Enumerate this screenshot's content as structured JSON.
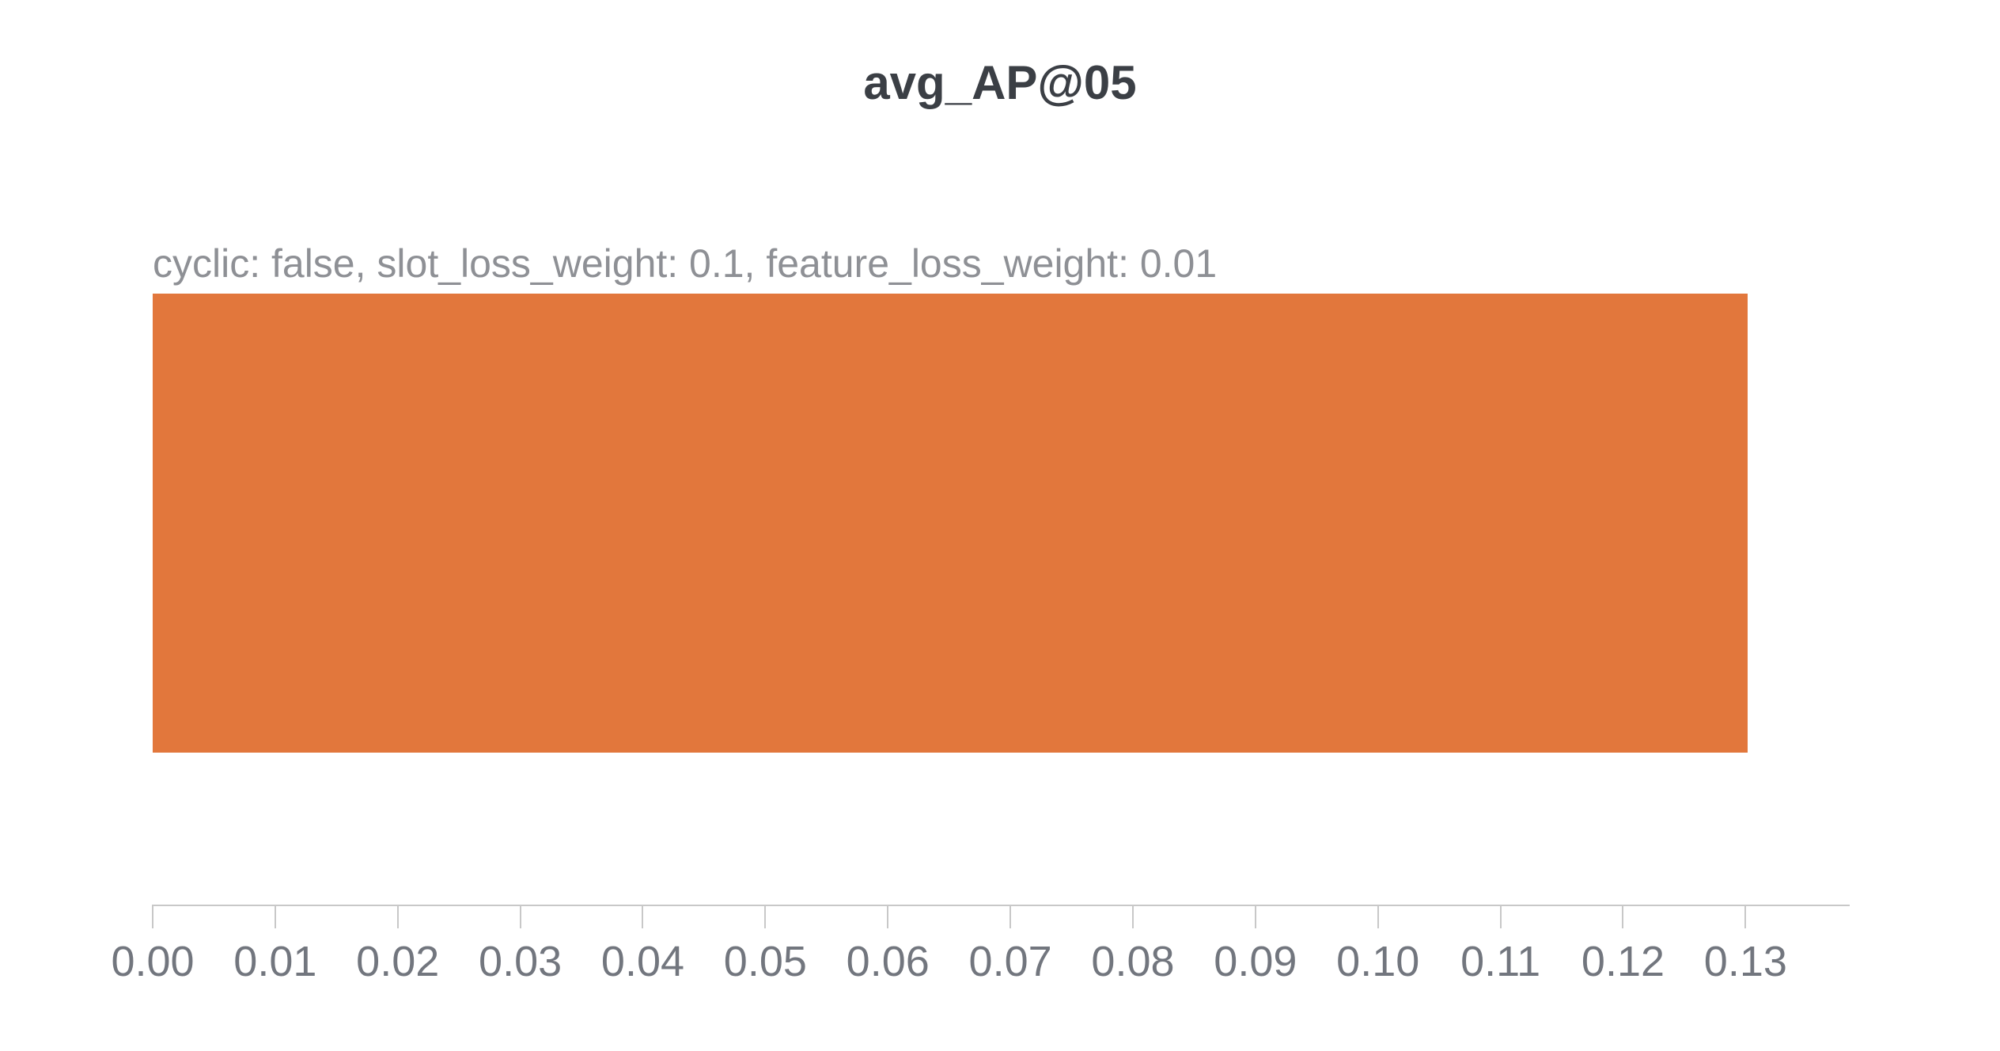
{
  "chart_data": {
    "type": "bar",
    "orientation": "horizontal",
    "title": "avg_AP@05",
    "categories": [
      "cyclic: false, slot_loss_weight: 0.1, feature_loss_weight: 0.01"
    ],
    "values": [
      0.1302
    ],
    "series": [
      {
        "name": "cyclic: false, slot_loss_weight: 0.1, feature_loss_weight: 0.01",
        "values": [
          0.1302
        ]
      }
    ],
    "xlabel": "",
    "ylabel": "",
    "xlim": [
      0,
      0.1385
    ],
    "x_ticks": [
      {
        "value": 0.0,
        "label": "0.00"
      },
      {
        "value": 0.01,
        "label": "0.01"
      },
      {
        "value": 0.02,
        "label": "0.02"
      },
      {
        "value": 0.03,
        "label": "0.03"
      },
      {
        "value": 0.04,
        "label": "0.04"
      },
      {
        "value": 0.05,
        "label": "0.05"
      },
      {
        "value": 0.06,
        "label": "0.06"
      },
      {
        "value": 0.07,
        "label": "0.07"
      },
      {
        "value": 0.08,
        "label": "0.08"
      },
      {
        "value": 0.09,
        "label": "0.09"
      },
      {
        "value": 0.1,
        "label": "0.10"
      },
      {
        "value": 0.11,
        "label": "0.11"
      },
      {
        "value": 0.12,
        "label": "0.12"
      },
      {
        "value": 0.13,
        "label": "0.13"
      }
    ],
    "grid": false,
    "legend_position": "none",
    "colors": {
      "bar": "#E2773C",
      "title_text": "#3B3F45",
      "annotation_text": "#8E9095",
      "tick_text": "#72767E",
      "axis_line": "#C8C8C8"
    }
  }
}
